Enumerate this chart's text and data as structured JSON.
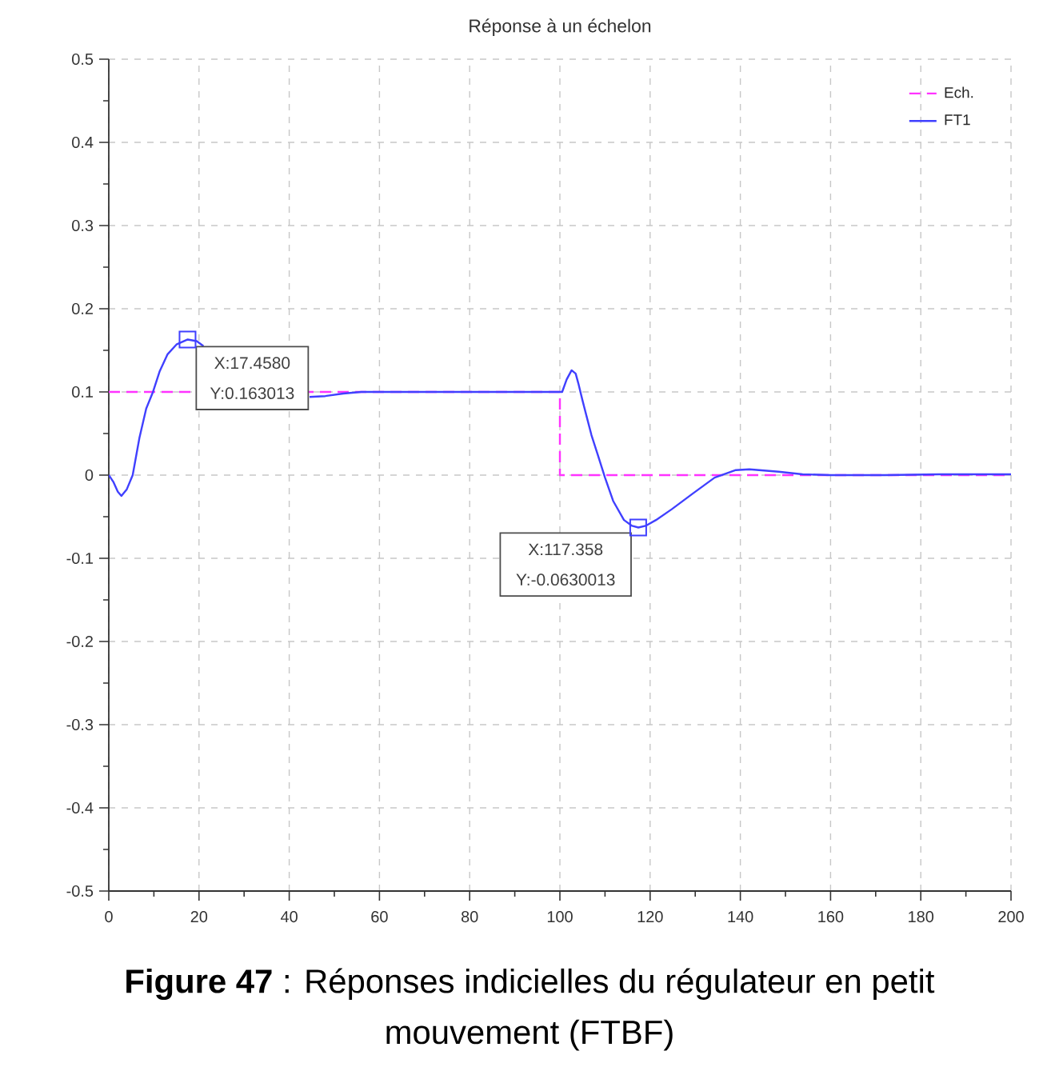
{
  "chart_data": {
    "type": "line",
    "title": "Réponse à un échelon",
    "series": [
      {
        "name": "Ech.",
        "type": "step",
        "color": "#ff33ff",
        "line_style": "dashed",
        "x": [
          0,
          100,
          200
        ],
        "values": [
          0.1,
          0,
          0
        ]
      },
      {
        "name": "FT1",
        "color": "#4040ff",
        "line_style": "solid",
        "x": [
          0,
          1,
          2,
          2.8,
          4,
          5.3,
          6.8,
          8.3,
          9.8,
          11.3,
          13,
          15,
          17.5,
          19.5,
          21,
          30,
          44.5,
          48,
          52,
          56,
          100,
          100.5,
          101.5,
          102.6,
          103.5,
          104.1,
          105,
          105.9,
          107,
          108.3,
          110,
          111.8,
          114.2,
          116,
          117.4,
          119,
          121.3,
          124.8,
          129.5,
          134.3,
          139,
          142,
          148.5,
          153.8,
          160,
          172,
          184,
          200
        ],
        "values": [
          0,
          -0.008,
          -0.02,
          -0.025,
          -0.017,
          0,
          0.045,
          0.08,
          0.1,
          0.125,
          0.145,
          0.157,
          0.163,
          0.161,
          0.155,
          null,
          0.094,
          0.095,
          0.098,
          0.1,
          0.1,
          0.1,
          0.115,
          0.126,
          0.122,
          0.11,
          0.09,
          0.071,
          0.048,
          0.026,
          -0.003,
          -0.031,
          -0.054,
          -0.061,
          -0.063,
          -0.061,
          -0.054,
          -0.041,
          -0.022,
          -0.003,
          0.006,
          0.007,
          0.004,
          0.001,
          0,
          0,
          0.001,
          0.001
        ]
      }
    ],
    "xlim": [
      0,
      200
    ],
    "ylim": [
      -0.5,
      0.5
    ],
    "xticks": [
      0,
      20,
      40,
      60,
      80,
      100,
      120,
      140,
      160,
      180,
      200
    ],
    "yticks": [
      -0.5,
      -0.4,
      -0.3,
      -0.2,
      -0.1,
      0,
      0.1,
      0.2,
      0.3,
      0.4,
      0.5
    ],
    "grid": true,
    "legend": "top right",
    "annotations": [
      {
        "text": "X:17.4580 Y:0.163013",
        "x": 17.458,
        "y": 0.163013
      },
      {
        "text": "X:117.358 Y:-0.0630013",
        "x": 117.358,
        "y": -0.0630013
      },
      "**Figure 47** : Réponses indicielles du régulateur en petit mouvement (FTBF)"
    ]
  }
}
